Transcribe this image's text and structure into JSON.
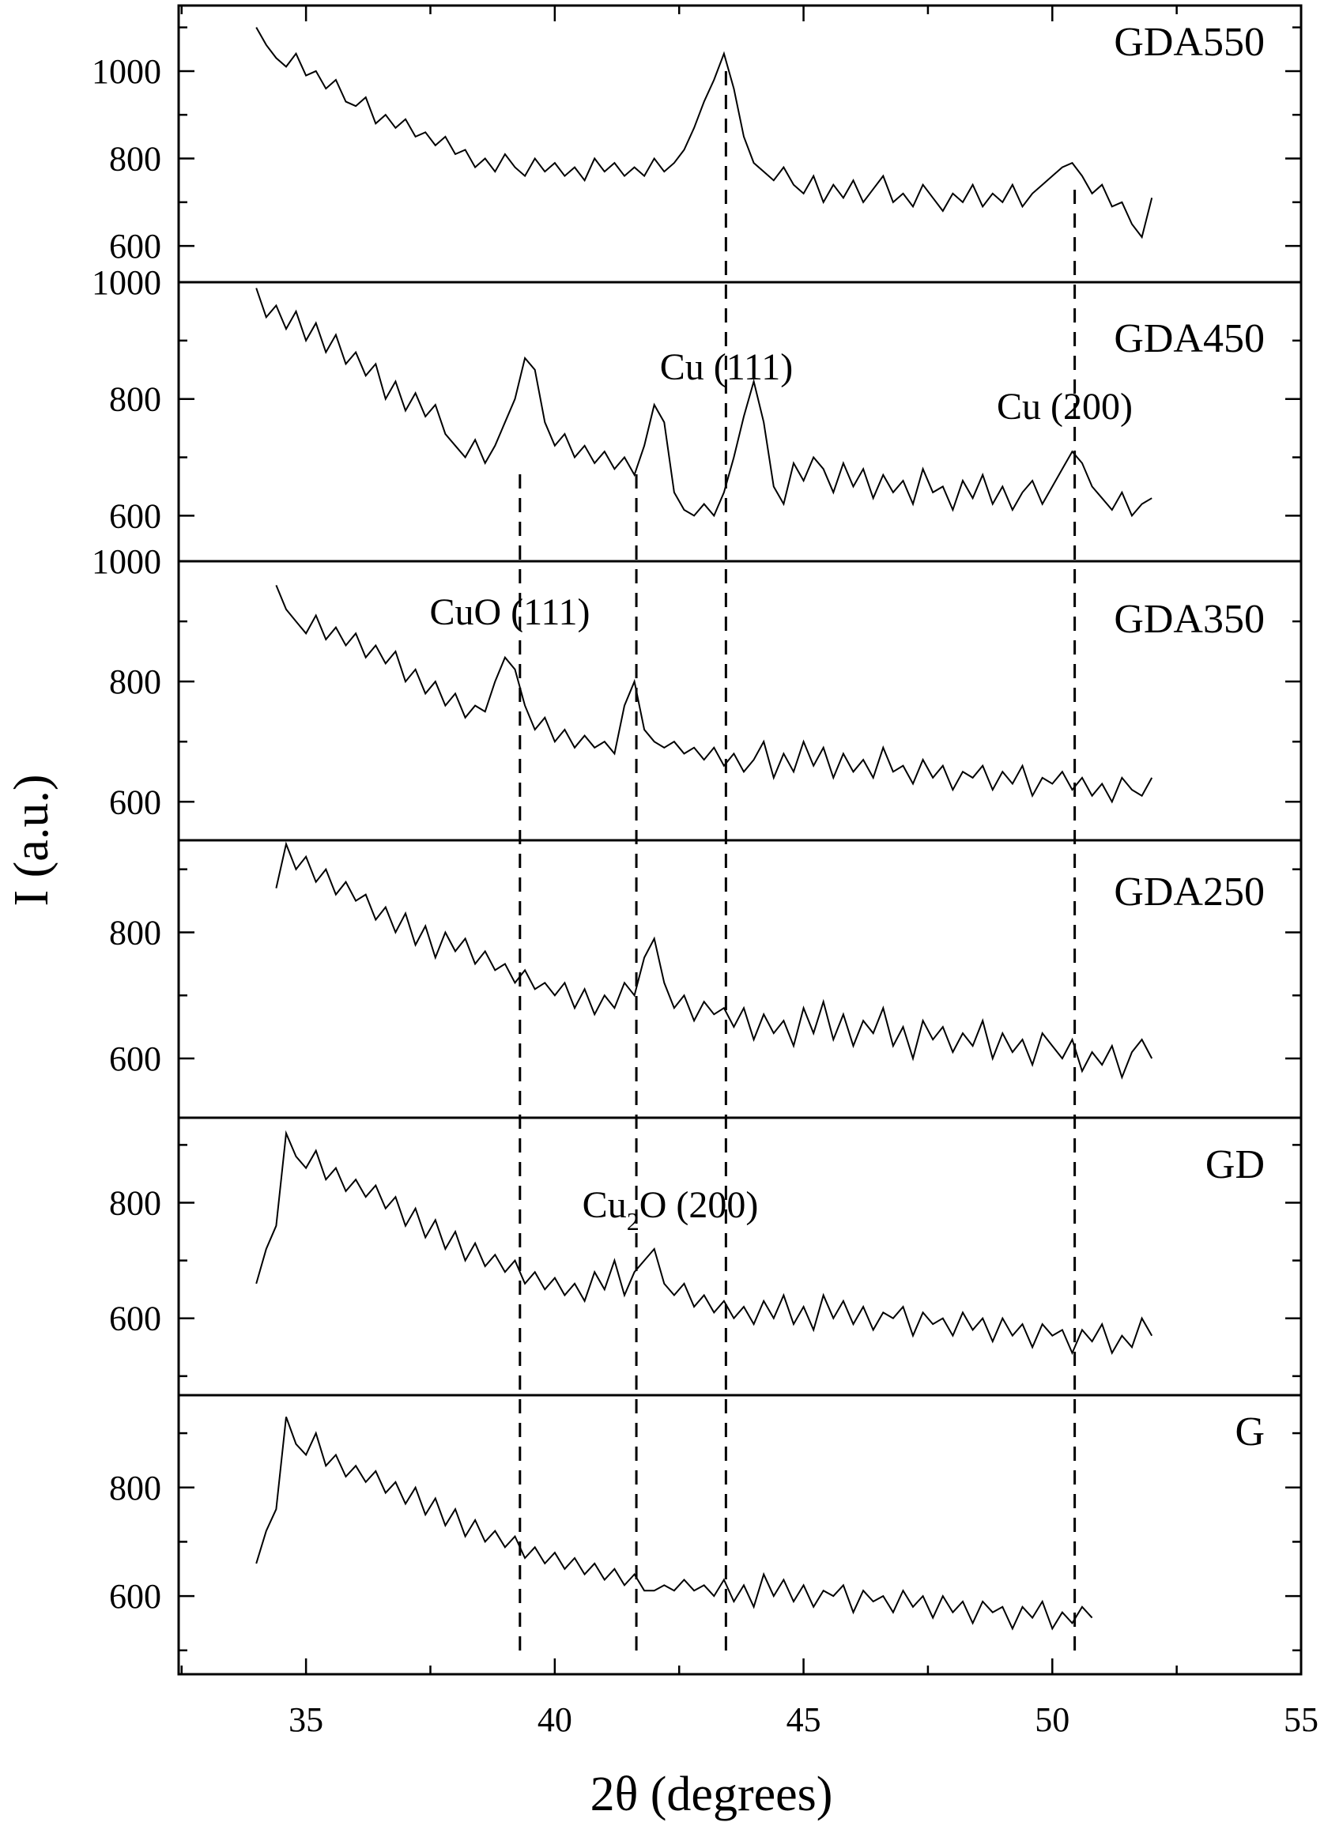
{
  "chart_data": {
    "type": "line",
    "title": "",
    "xlabel": "2θ (degrees)",
    "ylabel": "I (a.u.)",
    "xlim": [
      32.44,
      55
    ],
    "xticks": [
      35,
      40,
      45,
      50,
      55
    ],
    "x_start": 34.0,
    "x_step": 0.2,
    "grid": false,
    "reference_lines": [
      39.3,
      41.64,
      43.44,
      50.45
    ],
    "annotations": [
      {
        "text": "Cu (111)",
        "panel": "GDA450"
      },
      {
        "text": "Cu (200)",
        "panel": "GDA450"
      },
      {
        "text": "CuO (111)",
        "panel": "GDA350"
      },
      {
        "text_main": "Cu",
        "text_sub": "2",
        "text_rest": "O (200)",
        "panel": "GD"
      }
    ],
    "panels": [
      {
        "name": "GDA550",
        "ylim": [
          517,
          1150
        ],
        "yticks": [
          600,
          800,
          1000
        ],
        "values": [
          1100,
          1060,
          1030,
          1010,
          1040,
          990,
          1000,
          960,
          980,
          930,
          920,
          940,
          880,
          900,
          870,
          890,
          850,
          860,
          830,
          850,
          810,
          820,
          780,
          800,
          770,
          810,
          780,
          760,
          800,
          770,
          790,
          760,
          780,
          750,
          800,
          770,
          790,
          760,
          780,
          760,
          800,
          770,
          790,
          820,
          870,
          930,
          980,
          1040,
          960,
          850,
          790,
          770,
          750,
          780,
          740,
          720,
          760,
          700,
          740,
          710,
          750,
          700,
          730,
          760,
          700,
          720,
          690,
          740,
          710,
          680,
          720,
          700,
          740,
          690,
          720,
          700,
          740,
          690,
          720,
          740,
          760,
          780,
          790,
          760,
          720,
          740,
          690,
          700,
          650,
          620,
          710
        ]
      },
      {
        "name": "GDA450",
        "ylim": [
          522,
          1000
        ],
        "yticks": [
          600,
          800,
          1000
        ],
        "values": [
          990,
          940,
          960,
          920,
          950,
          900,
          930,
          880,
          910,
          860,
          880,
          840,
          860,
          800,
          830,
          780,
          810,
          770,
          790,
          740,
          720,
          700,
          730,
          690,
          720,
          760,
          800,
          870,
          850,
          760,
          720,
          740,
          700,
          720,
          690,
          710,
          680,
          700,
          670,
          720,
          790,
          760,
          640,
          610,
          600,
          620,
          600,
          640,
          700,
          770,
          830,
          760,
          650,
          620,
          690,
          660,
          700,
          680,
          640,
          690,
          650,
          680,
          630,
          670,
          640,
          660,
          620,
          680,
          640,
          650,
          610,
          660,
          630,
          670,
          620,
          650,
          610,
          640,
          660,
          620,
          650,
          680,
          710,
          690,
          650,
          630,
          610,
          640,
          600,
          620,
          630
        ]
      },
      {
        "name": "GDA350",
        "ylim": [
          536,
          1000
        ],
        "yticks": [
          600,
          800,
          1000
        ],
        "values": [
          null,
          null,
          960,
          920,
          900,
          880,
          910,
          870,
          890,
          860,
          880,
          840,
          860,
          830,
          850,
          800,
          820,
          780,
          800,
          760,
          780,
          740,
          760,
          750,
          800,
          840,
          820,
          760,
          720,
          740,
          700,
          720,
          690,
          710,
          690,
          700,
          680,
          760,
          800,
          720,
          700,
          690,
          700,
          680,
          690,
          670,
          690,
          660,
          680,
          650,
          670,
          700,
          640,
          680,
          650,
          700,
          660,
          690,
          640,
          680,
          650,
          670,
          640,
          690,
          650,
          660,
          630,
          670,
          640,
          660,
          620,
          650,
          640,
          660,
          620,
          650,
          630,
          660,
          610,
          640,
          630,
          650,
          620,
          640,
          610,
          630,
          600,
          640,
          620,
          610,
          640
        ]
      },
      {
        "name": "GDA250",
        "ylim": [
          506,
          946
        ],
        "yticks": [
          600,
          800
        ],
        "values": [
          null,
          null,
          870,
          940,
          900,
          920,
          880,
          900,
          860,
          880,
          850,
          860,
          820,
          840,
          800,
          830,
          780,
          810,
          760,
          800,
          770,
          790,
          750,
          770,
          740,
          750,
          720,
          740,
          710,
          720,
          700,
          720,
          680,
          710,
          670,
          700,
          680,
          720,
          700,
          760,
          790,
          720,
          680,
          700,
          660,
          690,
          670,
          680,
          650,
          680,
          630,
          670,
          640,
          660,
          620,
          680,
          640,
          690,
          630,
          670,
          620,
          660,
          640,
          680,
          620,
          650,
          600,
          660,
          630,
          650,
          610,
          640,
          620,
          660,
          600,
          640,
          610,
          630,
          590,
          640,
          620,
          600,
          630,
          580,
          610,
          590,
          620,
          570,
          610,
          630,
          600
        ]
      },
      {
        "name": "GD",
        "ylim": [
          467,
          947
        ],
        "yticks": [
          600,
          800
        ],
        "values": [
          660,
          720,
          760,
          920,
          880,
          860,
          890,
          840,
          860,
          820,
          840,
          810,
          830,
          790,
          810,
          760,
          790,
          740,
          770,
          720,
          750,
          700,
          730,
          690,
          710,
          680,
          700,
          660,
          680,
          650,
          670,
          640,
          660,
          630,
          680,
          650,
          700,
          640,
          680,
          700,
          720,
          660,
          640,
          660,
          620,
          640,
          610,
          630,
          600,
          620,
          590,
          630,
          600,
          640,
          590,
          620,
          580,
          640,
          600,
          630,
          590,
          620,
          580,
          610,
          600,
          620,
          570,
          610,
          590,
          600,
          570,
          610,
          580,
          600,
          560,
          600,
          570,
          590,
          550,
          590,
          570,
          580,
          540,
          580,
          560,
          590,
          540,
          570,
          550,
          600,
          570
        ]
      },
      {
        "name": "G",
        "ylim": [
          456,
          970
        ],
        "yticks": [
          600,
          800
        ],
        "values": [
          660,
          720,
          760,
          930,
          880,
          860,
          900,
          840,
          860,
          820,
          840,
          810,
          830,
          790,
          810,
          770,
          800,
          750,
          780,
          730,
          760,
          710,
          740,
          700,
          720,
          690,
          710,
          670,
          690,
          660,
          680,
          650,
          670,
          640,
          660,
          630,
          650,
          620,
          640,
          610,
          610,
          620,
          610,
          630,
          610,
          620,
          600,
          630,
          590,
          620,
          580,
          640,
          600,
          630,
          590,
          620,
          580,
          610,
          600,
          620,
          570,
          610,
          590,
          600,
          570,
          610,
          580,
          600,
          560,
          600,
          570,
          590,
          550,
          590,
          570,
          580,
          540,
          580,
          560,
          590,
          540,
          570,
          550,
          580,
          560
        ]
      }
    ]
  }
}
